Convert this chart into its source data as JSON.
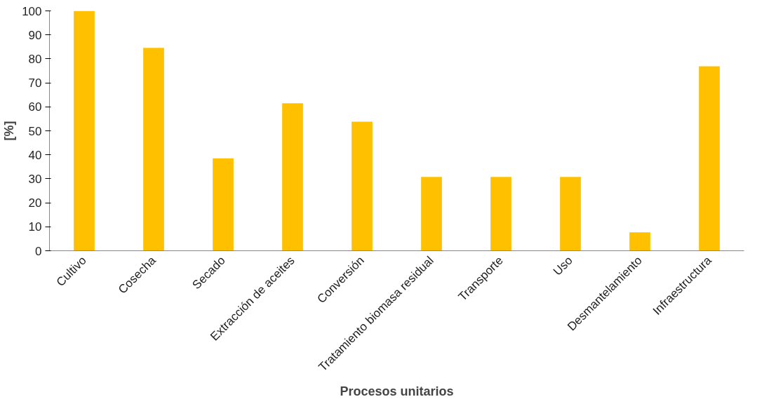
{
  "chart_data": {
    "type": "bar",
    "xlabel": "Procesos unitarios",
    "ylabel": "[%]",
    "categories": [
      "Cultivo",
      "Cosecha",
      "Secado",
      "Extracción de aceites",
      "Conversión",
      "Tratamiento biomasa residual",
      "Transporte",
      "Uso",
      "Desmantelamiento",
      "Infraestructura"
    ],
    "values": [
      100,
      84.6,
      38.5,
      61.5,
      53.8,
      30.8,
      30.8,
      30.8,
      7.7,
      76.9
    ],
    "color": "#ffc000",
    "ylim": [
      0,
      100
    ],
    "yticks": [
      0,
      10,
      20,
      30,
      40,
      50,
      60,
      70,
      80,
      90,
      100
    ],
    "grid": false
  }
}
